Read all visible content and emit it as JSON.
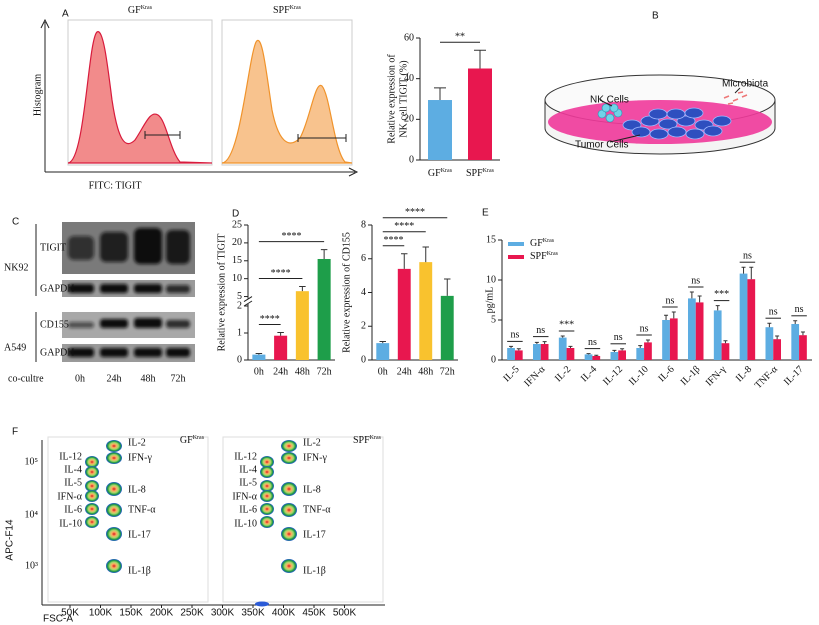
{
  "panel_labels": [
    "A",
    "B",
    "C",
    "D",
    "E",
    "F"
  ],
  "panel_a": {
    "histograms": [
      {
        "title": "GF",
        "title_sup": "Kras"
      },
      {
        "title": "SPF",
        "title_sup": "Kras"
      }
    ],
    "ylabel": "Histogram",
    "xlabel": "FITC: TIGIT"
  },
  "panel_b": {
    "labels": [
      "NK Cells",
      "Microbiota",
      "Tumor Cells"
    ]
  },
  "panel_c": {
    "cell_lines": [
      "NK92",
      "A549"
    ],
    "proteins": [
      "TIGIT",
      "GAPDH",
      "CD155",
      "GAPDH"
    ],
    "row_label": "co-cultre",
    "timepoints": [
      "0h",
      "24h",
      "48h",
      "72h"
    ]
  },
  "panel_f": {
    "plots": [
      {
        "title": "GF",
        "title_sup": "Kras"
      },
      {
        "title": "SPF",
        "title_sup": "Kras"
      }
    ],
    "cytokines_left": [
      "IL-12",
      "IL-4",
      "IL-5",
      "IFN-α",
      "IL-6",
      "IL-10"
    ],
    "cytokines_right": [
      "IL-2",
      "IFN-γ",
      "IL-8",
      "TNF-α",
      "IL-17",
      "IL-1β"
    ],
    "ylabel": "APC-F14",
    "xlabel": "FSC-A",
    "yticks": [
      "10⁵",
      "10⁴",
      "10³"
    ],
    "xticks": [
      "50K",
      "100K",
      "150K",
      "200K",
      "250K",
      "300K",
      "350K",
      "400K",
      "450K",
      "500K"
    ]
  },
  "chart_data": [
    {
      "type": "bar",
      "categories": [
        "GF",
        "SPF"
      ],
      "category_sup": [
        "Kras",
        "Kras"
      ],
      "values": [
        29.5,
        45
      ],
      "errors": [
        6,
        9
      ],
      "colors": [
        "#5dade2",
        "#e8174f"
      ],
      "ylim": [
        0,
        60
      ],
      "yticks": [
        0,
        20,
        40,
        60
      ],
      "ylabel": [
        "Relative expression of",
        "NK cell TIGIT (%)"
      ],
      "comparisons": [
        {
          "groups": [
            0,
            1
          ],
          "label": "**"
        }
      ]
    },
    {
      "type": "bar",
      "categories": [
        "0h",
        "24h",
        "48h",
        "72h"
      ],
      "values": [
        0.2,
        0.9,
        6.5,
        15.5
      ],
      "errors": [
        0.04,
        0.12,
        1.3,
        2.6
      ],
      "colors": [
        "#5dade2",
        "#e8174f",
        "#f9c22e",
        "#1e9e4a"
      ],
      "ylim": [
        0,
        25
      ],
      "yticks": [
        0,
        1,
        2,
        5,
        10,
        15,
        20,
        25
      ],
      "ybreak": [
        2,
        5
      ],
      "ylabel": [
        "Relative expression of TIGIT"
      ],
      "comparisons": [
        {
          "groups": [
            0,
            1
          ],
          "label": "****"
        },
        {
          "groups": [
            0,
            2
          ],
          "label": "****"
        },
        {
          "groups": [
            0,
            3
          ],
          "label": "****"
        }
      ]
    },
    {
      "type": "bar",
      "categories": [
        "0h",
        "24h",
        "48h",
        "72h"
      ],
      "values": [
        1.0,
        5.4,
        5.8,
        3.8
      ],
      "errors": [
        0.1,
        0.9,
        0.9,
        1.0
      ],
      "colors": [
        "#5dade2",
        "#e8174f",
        "#f9c22e",
        "#1e9e4a"
      ],
      "ylim": [
        0,
        8
      ],
      "yticks": [
        0,
        2,
        4,
        6,
        8
      ],
      "ylabel": [
        "Relative expression of CD155"
      ],
      "comparisons": [
        {
          "groups": [
            0,
            1
          ],
          "label": "****"
        },
        {
          "groups": [
            0,
            2
          ],
          "label": "****"
        },
        {
          "groups": [
            0,
            3
          ],
          "label": "****"
        }
      ]
    },
    {
      "type": "grouped_bar",
      "categories": [
        "IL-5",
        "IFN-α",
        "IL-2",
        "IL-4",
        "IL-12",
        "IL-10",
        "IL-6",
        "IL-1β",
        "IFN-γ",
        "IL-8",
        "TNF-α",
        "IL-17"
      ],
      "series": [
        {
          "name": "GF",
          "name_sup": "Kras",
          "color": "#5dade2",
          "values": [
            1.5,
            2.0,
            2.8,
            0.7,
            1.0,
            1.5,
            5.0,
            7.7,
            6.2,
            10.8,
            4.1,
            4.5
          ],
          "errors": [
            0.2,
            0.2,
            0.2,
            0.1,
            0.2,
            0.3,
            0.6,
            0.8,
            0.6,
            0.8,
            0.5,
            0.4
          ]
        },
        {
          "name": "SPF",
          "name_sup": "Kras",
          "color": "#e8174f",
          "values": [
            1.2,
            2.0,
            1.5,
            0.5,
            1.2,
            2.2,
            5.2,
            7.2,
            2.1,
            10.1,
            2.6,
            3.1
          ],
          "errors": [
            0.2,
            0.3,
            0.2,
            0.1,
            0.2,
            0.3,
            0.8,
            0.8,
            0.3,
            1.5,
            0.4,
            0.4
          ]
        }
      ],
      "annotations": [
        "ns",
        "ns",
        "***",
        "ns",
        "ns",
        "ns",
        "ns",
        "ns",
        "***",
        "ns",
        "ns",
        "ns"
      ],
      "ylim": [
        0,
        15
      ],
      "yticks": [
        0,
        5,
        10,
        15
      ],
      "ylabel": [
        "pg/mL"
      ],
      "legend": "top-left"
    }
  ]
}
